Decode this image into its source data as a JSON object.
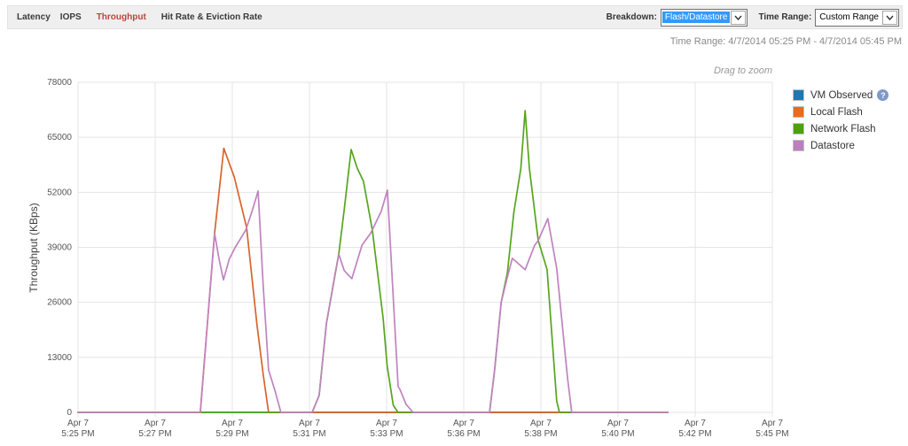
{
  "tabs": {
    "items": [
      {
        "label": "Latency",
        "active": false
      },
      {
        "label": "IOPS",
        "active": false
      },
      {
        "label": "Throughput",
        "active": true
      },
      {
        "label": "Hit Rate & Eviction Rate",
        "active": false
      }
    ]
  },
  "toolbar": {
    "breakdown_label": "Breakdown:",
    "breakdown_value": "Flash/Datastore",
    "time_range_label": "Time Range:",
    "time_range_value": "Custom Range"
  },
  "subheader": {
    "time_range_text": "Time Range: 4/7/2014 05:25 PM - 4/7/2014 05:45 PM"
  },
  "chart_data": {
    "type": "line",
    "title": "",
    "xlabel": "",
    "ylabel": "Throughput (KBps)",
    "drag_hint": "Drag to zoom",
    "ylim": [
      0,
      78000
    ],
    "yticks": [
      0,
      13000,
      26000,
      39000,
      52000,
      65000,
      78000
    ],
    "xticks": [
      {
        "date": "Apr 7",
        "time": "5:25 PM",
        "minute": 0
      },
      {
        "date": "Apr 7",
        "time": "5:27 PM",
        "minute": 2
      },
      {
        "date": "Apr 7",
        "time": "5:29 PM",
        "minute": 4
      },
      {
        "date": "Apr 7",
        "time": "5:31 PM",
        "minute": 6
      },
      {
        "date": "Apr 7",
        "time": "5:33 PM",
        "minute": 8
      },
      {
        "date": "Apr 7",
        "time": "5:36 PM",
        "minute": 11
      },
      {
        "date": "Apr 7",
        "time": "5:38 PM",
        "minute": 13
      },
      {
        "date": "Apr 7",
        "time": "5:40 PM",
        "minute": 15
      },
      {
        "date": "Apr 7",
        "time": "5:42 PM",
        "minute": 17
      },
      {
        "date": "Apr 7",
        "time": "5:45 PM",
        "minute": 20
      }
    ],
    "legend": [
      {
        "name": "VM Observed",
        "color": "#1f77b4",
        "help": true
      },
      {
        "name": "Local Flash",
        "color": "#ed6a1a",
        "help": false
      },
      {
        "name": "Network Flash",
        "color": "#4aa30c",
        "help": false
      },
      {
        "name": "Datastore",
        "color": "#bd7ebd",
        "help": false
      }
    ],
    "series": [
      {
        "name": "VM Observed",
        "color": "#1f77b4",
        "points": [
          [
            0,
            0
          ],
          [
            16.29,
            0
          ]
        ]
      },
      {
        "name": "Local Flash",
        "color": "#d6652c",
        "points": [
          [
            0,
            0
          ],
          [
            3.17,
            0
          ],
          [
            3.54,
            42300
          ],
          [
            3.78,
            62400
          ],
          [
            4.05,
            55600
          ],
          [
            4.37,
            43700
          ],
          [
            4.64,
            20700
          ],
          [
            4.8,
            9000
          ],
          [
            4.94,
            0
          ],
          [
            16.29,
            0
          ]
        ]
      },
      {
        "name": "Network Flash",
        "color": "#57a41e",
        "points": [
          [
            0,
            0
          ],
          [
            6.07,
            0
          ],
          [
            6.25,
            4000
          ],
          [
            6.44,
            21000
          ],
          [
            6.76,
            37500
          ],
          [
            6.9,
            47900
          ],
          [
            7.08,
            62100
          ],
          [
            7.24,
            57700
          ],
          [
            7.4,
            54600
          ],
          [
            7.63,
            43100
          ],
          [
            7.91,
            22200
          ],
          [
            8.02,
            11000
          ],
          [
            8.26,
            1700
          ],
          [
            8.44,
            0
          ],
          [
            11.67,
            0
          ],
          [
            11.8,
            10000
          ],
          [
            11.97,
            26000
          ],
          [
            12.13,
            33000
          ],
          [
            12.3,
            47250
          ],
          [
            12.48,
            57700
          ],
          [
            12.59,
            71300
          ],
          [
            12.7,
            57700
          ],
          [
            12.93,
            40600
          ],
          [
            13.16,
            33700
          ],
          [
            13.41,
            2700
          ],
          [
            13.48,
            0
          ],
          [
            16.29,
            0
          ]
        ]
      },
      {
        "name": "Datastore",
        "color": "#c083c0",
        "points": [
          [
            0,
            0
          ],
          [
            3.17,
            0
          ],
          [
            3.54,
            42300
          ],
          [
            3.65,
            36500
          ],
          [
            3.77,
            31300
          ],
          [
            3.92,
            36200
          ],
          [
            4.07,
            38900
          ],
          [
            4.35,
            43100
          ],
          [
            4.51,
            47500
          ],
          [
            4.67,
            52300
          ],
          [
            4.8,
            30000
          ],
          [
            4.94,
            10000
          ],
          [
            5.1,
            5300
          ],
          [
            5.26,
            0
          ],
          [
            6.07,
            0
          ],
          [
            6.25,
            4000
          ],
          [
            6.44,
            21000
          ],
          [
            6.67,
            33000
          ],
          [
            6.76,
            37400
          ],
          [
            6.9,
            33500
          ],
          [
            7.1,
            31600
          ],
          [
            7.36,
            39500
          ],
          [
            7.59,
            42400
          ],
          [
            7.86,
            47500
          ],
          [
            8.03,
            52500
          ],
          [
            8.24,
            29000
          ],
          [
            8.45,
            6100
          ],
          [
            8.52,
            5400
          ],
          [
            8.76,
            1900
          ],
          [
            9.03,
            0
          ],
          [
            11.67,
            0
          ],
          [
            11.8,
            10000
          ],
          [
            11.97,
            26000
          ],
          [
            12.13,
            32000
          ],
          [
            12.26,
            36400
          ],
          [
            12.59,
            33700
          ],
          [
            12.84,
            39500
          ],
          [
            12.93,
            40600
          ],
          [
            13.18,
            45800
          ],
          [
            13.41,
            34100
          ],
          [
            13.69,
            8200
          ],
          [
            13.8,
            0
          ],
          [
            16.29,
            0
          ]
        ]
      }
    ]
  }
}
